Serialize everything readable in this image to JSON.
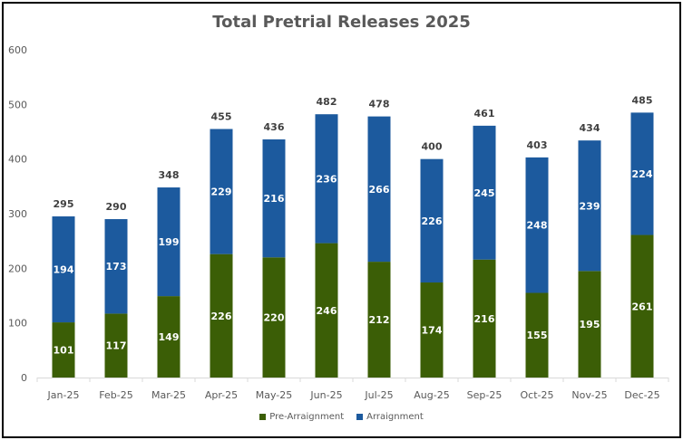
{
  "chart_data": {
    "type": "bar",
    "stacked": true,
    "title": "Total Pretrial Releases 2025",
    "categories": [
      "Jan-25",
      "Feb-25",
      "Mar-25",
      "Apr-25",
      "May-25",
      "Jun-25",
      "Jul-25",
      "Aug-25",
      "Sep-25",
      "Oct-25",
      "Nov-25",
      "Dec-25"
    ],
    "series": [
      {
        "name": "Pre-Arraignment",
        "color": "#3b5e06",
        "values": [
          101,
          117,
          149,
          226,
          220,
          246,
          212,
          174,
          216,
          155,
          195,
          261
        ]
      },
      {
        "name": "Arraignment",
        "color": "#1c5a9e",
        "values": [
          194,
          173,
          199,
          229,
          216,
          236,
          266,
          226,
          245,
          248,
          239,
          224
        ]
      }
    ],
    "totals": [
      295,
      290,
      348,
      455,
      436,
      482,
      478,
      400,
      461,
      403,
      434,
      485
    ],
    "ylim": [
      0,
      600
    ],
    "yticks": [
      0,
      100,
      200,
      300,
      400,
      500,
      600
    ],
    "grid": false,
    "legend": "bottom"
  }
}
